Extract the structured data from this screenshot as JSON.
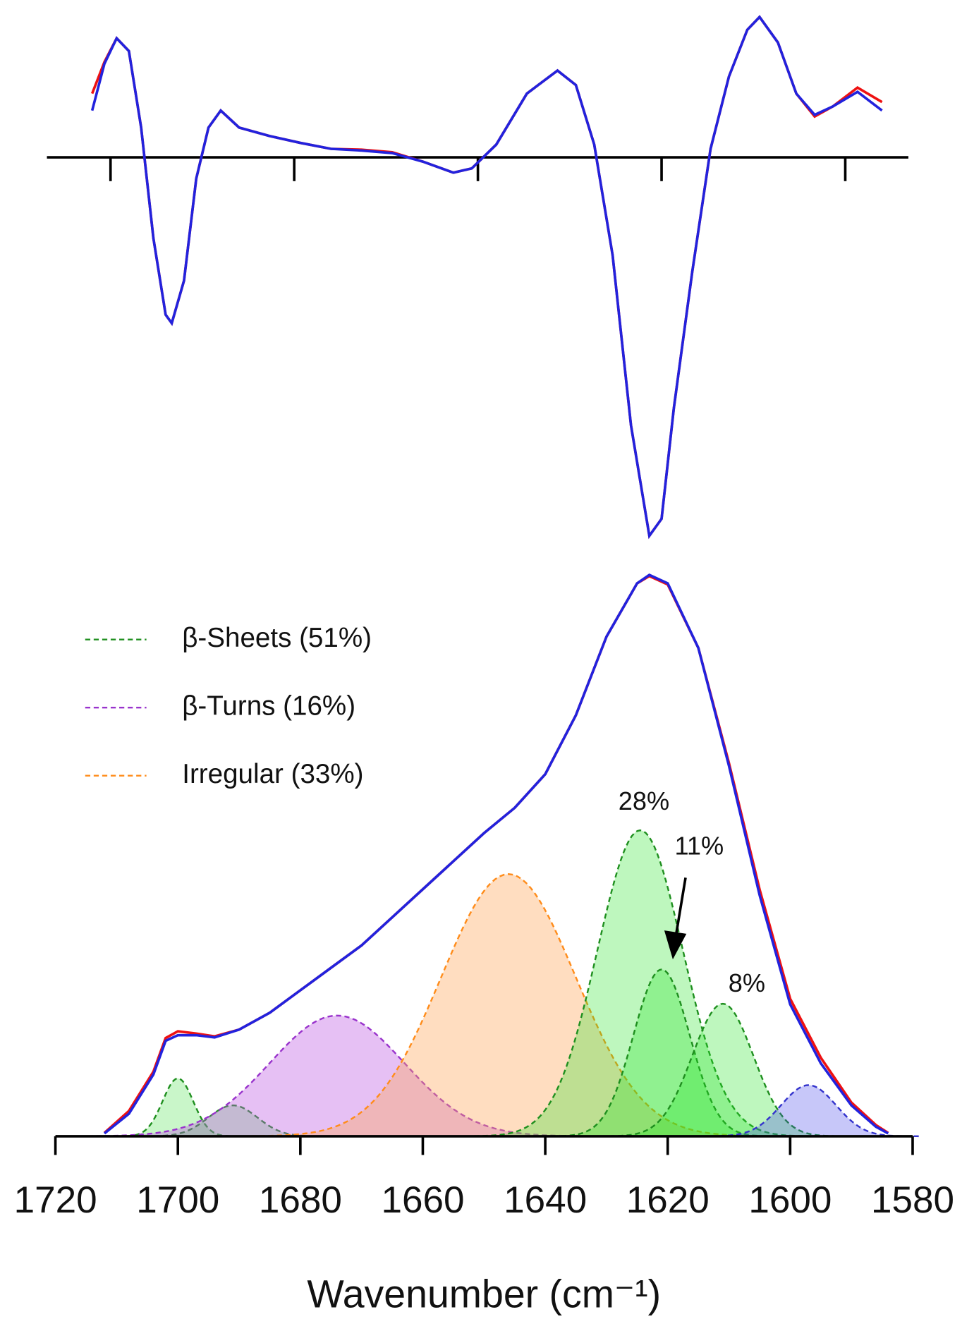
{
  "chart_data": [
    {
      "type": "line",
      "x": [
        1714,
        1712,
        1710,
        1708,
        1706,
        1704,
        1702,
        1701,
        1699,
        1697,
        1695,
        1693,
        1690,
        1685,
        1680,
        1675,
        1670,
        1665,
        1660,
        1655,
        1652,
        1648,
        1643,
        1638,
        1635,
        1632,
        1629,
        1626,
        1623,
        1621,
        1619,
        1616,
        1613,
        1610,
        1607,
        1605,
        1602,
        1599,
        1596,
        1593,
        1589,
        1585
      ],
      "series": [
        {
          "color": "#ee1111",
          "values": [
            0.75,
            1.12,
            1.4,
            1.25,
            0.35,
            -0.95,
            -1.85,
            -1.95,
            -1.45,
            -0.25,
            0.35,
            0.55,
            0.35,
            0.25,
            0.17,
            0.1,
            0.09,
            0.06,
            -0.05,
            -0.18,
            -0.13,
            0.15,
            0.75,
            1.02,
            0.85,
            0.15,
            -1.15,
            -3.15,
            -4.45,
            -4.25,
            -2.95,
            -1.35,
            0.1,
            0.95,
            1.5,
            1.65,
            1.35,
            0.75,
            0.48,
            0.6,
            0.82,
            0.65
          ]
        },
        {
          "color": "#2222dd",
          "values": [
            0.55,
            1.1,
            1.4,
            1.25,
            0.35,
            -0.95,
            -1.85,
            -1.95,
            -1.45,
            -0.25,
            0.35,
            0.55,
            0.35,
            0.25,
            0.17,
            0.1,
            0.08,
            0.05,
            -0.05,
            -0.18,
            -0.13,
            0.15,
            0.75,
            1.02,
            0.85,
            0.15,
            -1.15,
            -3.15,
            -4.45,
            -4.25,
            -2.95,
            -1.35,
            0.1,
            0.95,
            1.5,
            1.65,
            1.35,
            0.75,
            0.5,
            0.6,
            0.77,
            0.55
          ]
        }
      ],
      "xlim": [
        1720,
        1580
      ],
      "ylim": [
        -4.6,
        1.7
      ],
      "xticks": [
        1711,
        1681,
        1651,
        1621,
        1591
      ]
    },
    {
      "type": "line",
      "x_label": "Wavenumber (cm⁻¹)",
      "x": [
        1712,
        1708,
        1704,
        1702,
        1700,
        1697,
        1694,
        1690,
        1685,
        1680,
        1675,
        1670,
        1665,
        1660,
        1655,
        1650,
        1645,
        1640,
        1635,
        1630,
        1625,
        1623,
        1620,
        1615,
        1610,
        1605,
        1600,
        1595,
        1590,
        1586,
        1584
      ],
      "series": [
        {
          "color": "#ee1111",
          "values": [
            0.006,
            0.045,
            0.115,
            0.175,
            0.187,
            0.183,
            0.178,
            0.19,
            0.22,
            0.26,
            0.3,
            0.34,
            0.39,
            0.44,
            0.49,
            0.54,
            0.585,
            0.645,
            0.75,
            0.89,
            0.985,
            0.998,
            0.983,
            0.87,
            0.665,
            0.44,
            0.245,
            0.14,
            0.06,
            0.02,
            0.006
          ]
        },
        {
          "color": "#2222dd",
          "values": [
            0.005,
            0.04,
            0.11,
            0.17,
            0.18,
            0.18,
            0.176,
            0.19,
            0.22,
            0.26,
            0.3,
            0.34,
            0.39,
            0.44,
            0.49,
            0.54,
            0.585,
            0.645,
            0.75,
            0.89,
            0.985,
            1.0,
            0.985,
            0.87,
            0.66,
            0.43,
            0.235,
            0.13,
            0.055,
            0.017,
            0.005
          ]
        }
      ],
      "components": [
        {
          "center": 1700,
          "height": 0.103,
          "width": 2.5,
          "color": "#1f8f1f",
          "fill": "rgba(40,220,40,0.25)"
        },
        {
          "center": 1691,
          "height": 0.055,
          "width": 4,
          "color": "#1f8f1f",
          "fill": "rgba(40,220,40,0.25)"
        },
        {
          "center": 1674,
          "height": 0.215,
          "width": 11,
          "color": "#9933cc",
          "fill": "rgba(190,90,225,0.38)"
        },
        {
          "center": 1646,
          "height": 0.467,
          "width": 11,
          "color": "#ff8c1a",
          "fill": "rgba(255,165,90,0.38)"
        },
        {
          "center": 1624.5,
          "height": 0.545,
          "width": 7,
          "color": "#1f8f1f",
          "fill": "rgba(40,230,40,0.3)"
        },
        {
          "center": 1621,
          "height": 0.297,
          "width": 4.6,
          "color": "#1f8f1f",
          "fill": "rgba(40,230,40,0.3)"
        },
        {
          "center": 1611,
          "height": 0.236,
          "width": 5,
          "color": "#1f8f1f",
          "fill": "rgba(40,230,40,0.3)"
        },
        {
          "center": 1597,
          "height": 0.091,
          "width": 4.5,
          "color": "#3333cc",
          "fill": "rgba(70,70,235,0.3)"
        }
      ],
      "legend": [
        {
          "name": "β-Sheets (51%)",
          "color": "#1f8f1f"
        },
        {
          "name": "β-Turns (16%)",
          "color": "#9933cc"
        },
        {
          "name": "Irregular (33%)",
          "color": "#ff8c1a"
        }
      ],
      "annotations": [
        "28%",
        "11%",
        "8%"
      ],
      "xlim": [
        1720,
        1580
      ],
      "ylim": [
        0,
        1.05
      ],
      "xticks": [
        1720,
        1700,
        1680,
        1660,
        1640,
        1620,
        1600,
        1580
      ]
    }
  ]
}
